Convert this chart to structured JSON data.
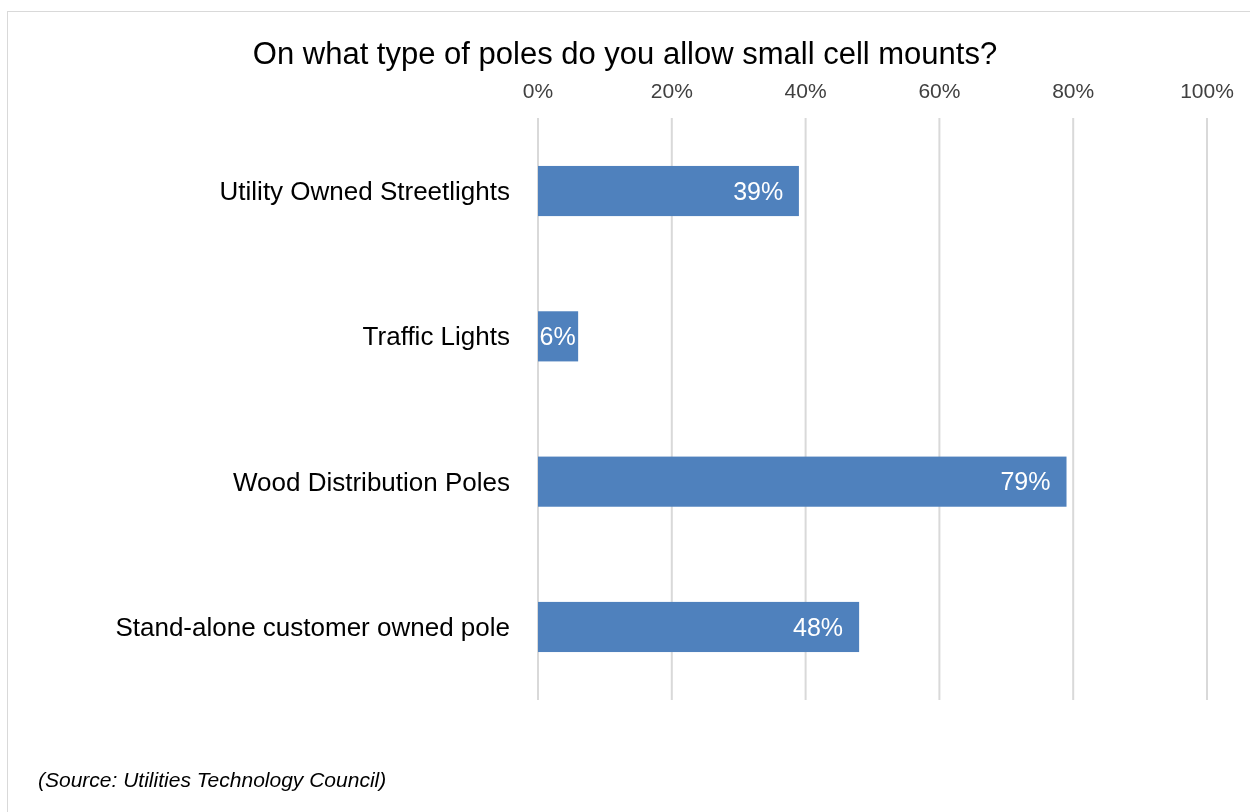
{
  "chart_data": {
    "type": "bar",
    "orientation": "horizontal",
    "title": "On what type of poles do you allow small cell mounts?",
    "categories": [
      "Utility Owned Streetlights",
      "Traffic Lights",
      "Wood Distribution Poles",
      "Stand-alone customer owned pole"
    ],
    "values": [
      39,
      6,
      79,
      48
    ],
    "value_labels": [
      "39%",
      "6%",
      "79%",
      "48%"
    ],
    "color": "#4f81bd",
    "xlim": [
      0,
      100
    ],
    "xticks": [
      {
        "value": 0,
        "label": "0%"
      },
      {
        "value": 20,
        "label": "20%"
      },
      {
        "value": 40,
        "label": "40%"
      },
      {
        "value": 60,
        "label": "60%"
      },
      {
        "value": 80,
        "label": "80%"
      },
      {
        "value": 100,
        "label": "100%"
      }
    ],
    "grid": "x",
    "annotations": [
      "(Source: Utilities Technology Council)"
    ]
  }
}
